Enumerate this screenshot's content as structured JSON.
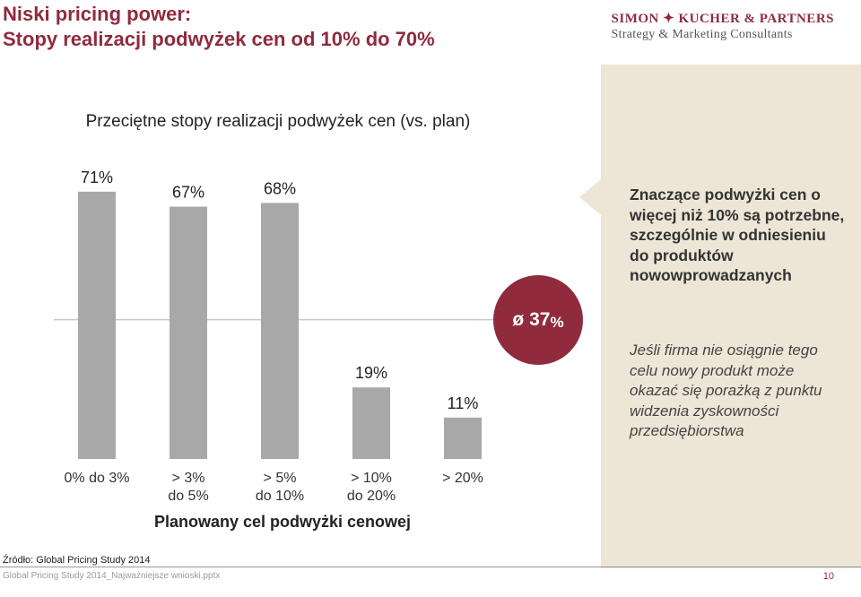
{
  "header": {
    "title_line1": "Niski pricing power:",
    "title_line2": "Stopy realizacji podwyżek cen od 10% do 70%",
    "brand_name": "SIMON ✦ KUCHER & PARTNERS",
    "brand_tagline": "Strategy & Marketing Consultants"
  },
  "colors": {
    "accent": "#8f2b3d",
    "bar": "#a8a8a8",
    "panel": "#ede6d6"
  },
  "chart_data": {
    "type": "bar",
    "title": "Przeciętne stopy realizacji podwyżek cen (vs. plan)",
    "xlabel": "Planowany cel podwyżki cenowej",
    "ylabel": "",
    "categories": [
      [
        "0% do 3%"
      ],
      [
        "> 3%",
        "do 5%"
      ],
      [
        "> 5%",
        "do 10%"
      ],
      [
        "> 10%",
        "do 20%"
      ],
      [
        "> 20%"
      ]
    ],
    "values": [
      71,
      67,
      68,
      19,
      11
    ],
    "value_labels": [
      "71%",
      "67%",
      "68%",
      "19%",
      "11%"
    ],
    "ylim": [
      0,
      100
    ],
    "average": {
      "value": 37,
      "label_prefix": "ø",
      "label_value": "37",
      "label_unit": "%"
    },
    "grid": false
  },
  "panel": {
    "headline": "Znaczące podwyżki cen o więcej niż 10% są potrzebne, szczególnie w odniesieniu do produktów nowowprowadzanych",
    "body": "Jeśli firma nie osiągnie tego celu nowy produkt może okazać się porażką z punktu widzenia zyskowności przedsiębiorstwa"
  },
  "footer": {
    "source": "Źródło: Global Pricing Study 2014",
    "file": "Global Pricing Study 2014_Najważniejsze wnioski.pptx",
    "page": "10"
  }
}
